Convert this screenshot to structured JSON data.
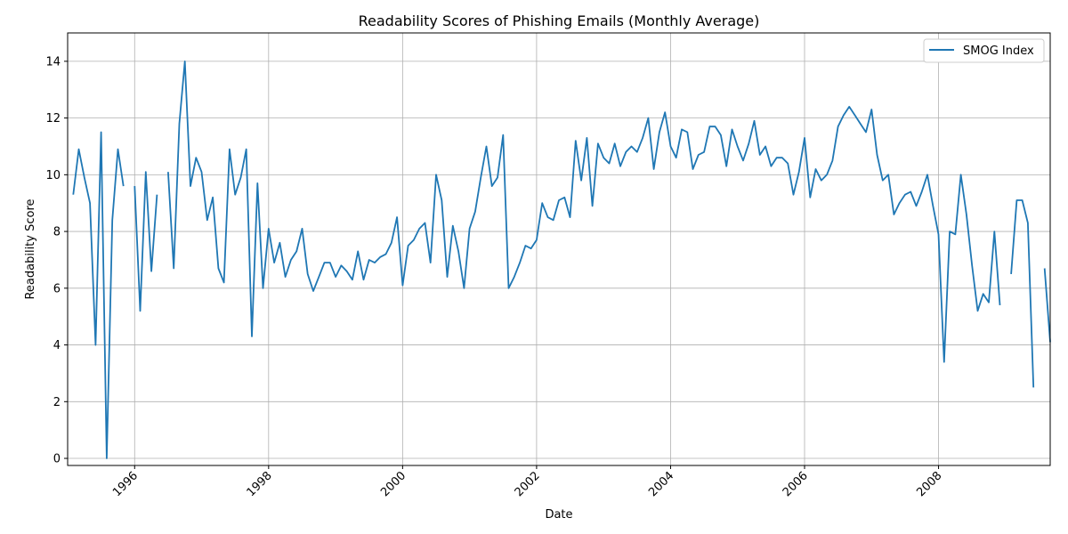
{
  "chart_data": {
    "type": "line",
    "title": "Readability Scores of Phishing Emails (Monthly Average)",
    "xlabel": "Date",
    "ylabel": "Readability Score",
    "xlim": [
      "1995-01",
      "2009-09"
    ],
    "ylim": [
      -0.25,
      15
    ],
    "x_ticks": [
      "1996",
      "1998",
      "2000",
      "2002",
      "2004",
      "2006",
      "2008"
    ],
    "y_ticks": [
      "0",
      "2",
      "4",
      "6",
      "8",
      "10",
      "12",
      "14"
    ],
    "grid": true,
    "legend_position": "top-right",
    "series": [
      {
        "name": "SMOG Index",
        "color": "#1f77b4",
        "x": [
          "1995-02",
          "1995-03",
          "1995-04",
          "1995-05",
          "1995-06",
          "1995-07",
          "1995-08",
          "1995-09",
          "1995-10",
          "1995-11",
          "1995-12",
          "1996-01",
          "1996-02",
          "1996-03",
          "1996-04",
          "1996-05",
          "1996-06",
          "1996-07",
          "1996-08",
          "1996-09",
          "1996-10",
          "1996-11",
          "1996-12",
          "1997-01",
          "1997-02",
          "1997-03",
          "1997-04",
          "1997-05",
          "1997-06",
          "1997-07",
          "1997-08",
          "1997-09",
          "1997-10",
          "1997-11",
          "1997-12",
          "1998-01",
          "1998-02",
          "1998-03",
          "1998-04",
          "1998-05",
          "1998-06",
          "1998-07",
          "1998-08",
          "1998-09",
          "1998-10",
          "1998-11",
          "1998-12",
          "1999-01",
          "1999-02",
          "1999-03",
          "1999-04",
          "1999-05",
          "1999-06",
          "1999-07",
          "1999-08",
          "1999-09",
          "1999-10",
          "1999-11",
          "1999-12",
          "2000-01",
          "2000-02",
          "2000-03",
          "2000-04",
          "2000-05",
          "2000-06",
          "2000-07",
          "2000-08",
          "2000-09",
          "2000-10",
          "2000-11",
          "2000-12",
          "2001-01",
          "2001-02",
          "2001-03",
          "2001-04",
          "2001-05",
          "2001-06",
          "2001-07",
          "2001-08",
          "2001-09",
          "2001-10",
          "2001-11",
          "2001-12",
          "2002-01",
          "2002-02",
          "2002-03",
          "2002-04",
          "2002-05",
          "2002-06",
          "2002-07",
          "2002-08",
          "2002-09",
          "2002-10",
          "2002-11",
          "2002-12",
          "2003-01",
          "2003-02",
          "2003-03",
          "2003-04",
          "2003-05",
          "2003-06",
          "2003-07",
          "2003-08",
          "2003-09",
          "2003-10",
          "2003-11",
          "2003-12",
          "2004-01",
          "2004-02",
          "2004-03",
          "2004-04",
          "2004-05",
          "2004-06",
          "2004-07",
          "2004-08",
          "2004-09",
          "2004-10",
          "2004-11",
          "2004-12",
          "2005-01",
          "2005-02",
          "2005-03",
          "2005-04",
          "2005-05",
          "2005-06",
          "2005-07",
          "2005-08",
          "2005-09",
          "2005-10",
          "2005-11",
          "2005-12",
          "2006-01",
          "2006-02",
          "2006-03",
          "2006-04",
          "2006-05",
          "2006-06",
          "2006-07",
          "2006-08",
          "2006-09",
          "2006-10",
          "2006-11",
          "2006-12",
          "2007-01",
          "2007-02",
          "2007-03",
          "2007-04",
          "2007-05",
          "2007-06",
          "2007-07",
          "2007-08",
          "2007-09",
          "2007-10",
          "2007-11",
          "2007-12",
          "2008-01",
          "2008-02",
          "2008-03",
          "2008-04",
          "2008-05",
          "2008-06",
          "2008-07",
          "2008-08",
          "2008-09",
          "2008-10",
          "2008-11",
          "2008-12",
          "2009-01",
          "2009-02",
          "2009-03",
          "2009-04",
          "2009-05",
          "2009-06",
          "2009-07",
          "2009-08",
          "2009-09"
        ],
        "values": [
          9.3,
          10.9,
          9.9,
          9.0,
          4.0,
          11.5,
          0.0,
          8.4,
          10.9,
          9.6,
          null,
          9.6,
          5.2,
          10.1,
          6.6,
          9.3,
          null,
          10.1,
          6.7,
          11.8,
          14.0,
          9.6,
          10.6,
          10.1,
          8.4,
          9.2,
          6.7,
          6.2,
          10.9,
          9.3,
          9.9,
          10.9,
          4.3,
          9.7,
          6.0,
          8.1,
          6.9,
          7.6,
          6.4,
          7.0,
          7.3,
          8.1,
          6.5,
          5.9,
          6.4,
          6.9,
          6.9,
          6.4,
          6.8,
          6.6,
          6.3,
          7.3,
          6.3,
          7.0,
          6.9,
          7.1,
          7.2,
          7.6,
          8.5,
          6.1,
          7.5,
          7.7,
          8.1,
          8.3,
          6.9,
          10.0,
          9.1,
          6.4,
          8.2,
          7.3,
          6.0,
          8.1,
          8.7,
          9.9,
          11.0,
          9.6,
          9.9,
          11.4,
          6.0,
          6.4,
          6.9,
          7.5,
          7.4,
          7.7,
          9.0,
          8.5,
          8.4,
          9.1,
          9.2,
          8.5,
          11.2,
          9.8,
          11.3,
          8.9,
          11.1,
          10.6,
          10.4,
          11.1,
          10.3,
          10.8,
          11.0,
          10.8,
          11.3,
          12.0,
          10.2,
          11.5,
          12.2,
          11.0,
          10.6,
          11.6,
          11.5,
          10.2,
          10.7,
          10.8,
          11.7,
          11.7,
          11.4,
          10.3,
          11.6,
          11.0,
          10.5,
          11.1,
          11.9,
          10.7,
          11.0,
          10.3,
          10.6,
          10.6,
          10.4,
          9.3,
          10.1,
          11.3,
          9.2,
          10.2,
          9.8,
          10.0,
          10.5,
          11.7,
          12.1,
          12.4,
          12.1,
          11.8,
          11.5,
          12.3,
          10.7,
          9.8,
          10.0,
          8.6,
          9.0,
          9.3,
          9.4,
          8.9,
          9.4,
          10.0,
          8.9,
          7.9,
          3.4,
          8.0,
          7.9,
          10.0,
          8.6,
          6.8,
          5.2,
          5.8,
          5.5,
          8.0,
          5.4,
          null,
          6.5,
          9.1,
          9.1,
          8.3,
          2.5,
          null,
          6.7,
          4.1
        ]
      }
    ]
  }
}
